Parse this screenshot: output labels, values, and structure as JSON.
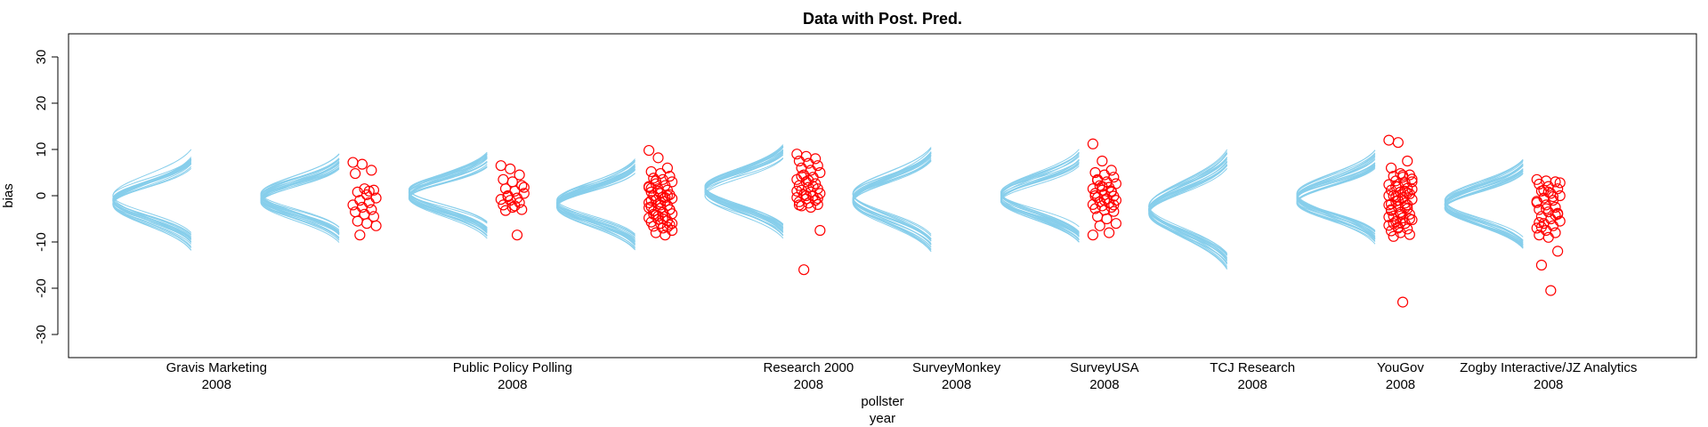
{
  "chart_data": {
    "type": "scatter",
    "title": "Data with Post. Pred.",
    "ylabel": "bias",
    "xlabel": [
      "pollster",
      "year"
    ],
    "ylim": [
      -35,
      35
    ],
    "yticks": [
      -30,
      -20,
      -10,
      0,
      10,
      20,
      30
    ],
    "grid": false,
    "colors": {
      "curves": "#87ceeb",
      "points": "#ff0000"
    },
    "x_tick_labels": [
      {
        "x": 1,
        "pollster": "Gravis Marketing",
        "year": "2008"
      },
      {
        "x": 3,
        "pollster": "Public Policy Polling",
        "year": "2008"
      },
      {
        "x": 5,
        "pollster": "Research 2000",
        "year": "2008"
      },
      {
        "x": 6,
        "pollster": "SurveyMonkey",
        "year": "2008"
      },
      {
        "x": 7,
        "pollster": "SurveyUSA",
        "year": "2008"
      },
      {
        "x": 8,
        "pollster": "TCJ Research",
        "year": "2008"
      },
      {
        "x": 9,
        "pollster": "YouGov",
        "year": "2008"
      },
      {
        "x": 10,
        "pollster": "Zogby Interactive/JZ Analytics",
        "year": "2008"
      }
    ],
    "groups": [
      {
        "x": 1,
        "mu": -1.0,
        "sigma": 4.0,
        "n": 0,
        "points": []
      },
      {
        "x": 2,
        "mu": -0.5,
        "sigma": 3.5,
        "n": 22,
        "points": [
          7.2,
          6.8,
          5.5,
          4.8,
          1.5,
          1.2,
          0.8,
          0.2,
          -0.5,
          -1.0,
          -1.5,
          -2.0,
          -2.5,
          -3.0,
          -3.5,
          -4.0,
          -4.5,
          -5.5,
          -6.0,
          -6.5,
          -8.5,
          1.0
        ]
      },
      {
        "x": 3,
        "mu": 0.5,
        "sigma": 3.5,
        "n": 22,
        "points": [
          6.5,
          5.8,
          4.5,
          3.5,
          3.0,
          2.2,
          1.5,
          1.0,
          0.5,
          0.0,
          -0.5,
          -0.8,
          -1.0,
          -1.5,
          -2.0,
          -2.5,
          -3.0,
          -3.2,
          -2.2,
          1.8,
          -0.2,
          -8.5
        ]
      },
      {
        "x": 4,
        "mu": -1.5,
        "sigma": 3.8,
        "n": 60,
        "points": [
          9.8,
          8.2,
          6.0,
          5.2,
          4.8,
          4.2,
          3.8,
          3.5,
          3.0,
          2.6,
          2.2,
          1.8,
          1.5,
          1.2,
          0.8,
          0.5,
          0.2,
          0.0,
          -0.3,
          -0.6,
          -0.9,
          -1.2,
          -1.5,
          -1.8,
          -2.1,
          -2.4,
          -2.7,
          -3.0,
          -3.3,
          -3.6,
          -3.9,
          -4.2,
          -4.5,
          -4.8,
          -5.1,
          -5.4,
          -5.7,
          -6.0,
          -6.3,
          -6.6,
          -7.0,
          -7.5,
          -8.0,
          -8.5,
          2.0,
          1.0,
          0.0,
          -1.0,
          -2.0,
          -3.0,
          -4.0,
          -5.0,
          -6.0,
          3.2,
          -0.4,
          -2.6,
          -4.4,
          -6.8,
          1.6,
          -1.4
        ]
      },
      {
        "x": 5,
        "mu": 1.0,
        "sigma": 3.8,
        "n": 40,
        "points": [
          9.0,
          8.5,
          8.0,
          7.5,
          7.0,
          6.5,
          6.0,
          5.5,
          5.0,
          4.5,
          4.0,
          3.5,
          3.0,
          2.6,
          2.2,
          1.8,
          1.5,
          1.2,
          0.8,
          0.5,
          0.2,
          -0.1,
          -0.4,
          -0.7,
          -1.0,
          -1.3,
          -1.6,
          -1.9,
          -2.2,
          -2.5,
          -7.5,
          -16.0,
          2.0,
          1.0,
          0.0,
          -1.0,
          -2.0,
          3.3,
          -0.6,
          4.2
        ]
      },
      {
        "x": 6,
        "mu": -0.5,
        "sigma": 4.5,
        "n": 0,
        "points": []
      },
      {
        "x": 7,
        "mu": -0.3,
        "sigma": 3.8,
        "n": 40,
        "points": [
          11.2,
          7.5,
          5.5,
          5.0,
          4.5,
          4.0,
          3.5,
          3.0,
          2.6,
          2.2,
          1.8,
          1.5,
          1.2,
          0.8,
          0.5,
          0.2,
          -0.1,
          -0.4,
          -0.7,
          -1.0,
          -1.3,
          -1.6,
          -1.9,
          -2.2,
          -2.5,
          -2.8,
          -3.1,
          -3.4,
          -4.5,
          -5.0,
          -6.0,
          -6.5,
          -8.0,
          -8.5,
          2.0,
          1.0,
          0.0,
          -1.0,
          -2.0,
          3.3
        ]
      },
      {
        "x": 8,
        "mu": -3.0,
        "sigma": 5.0,
        "n": 0,
        "points": []
      },
      {
        "x": 9,
        "mu": -0.5,
        "sigma": 3.8,
        "n": 60,
        "points": [
          12.0,
          11.5,
          7.5,
          6.0,
          4.8,
          4.5,
          4.2,
          4.0,
          3.6,
          3.2,
          2.8,
          2.4,
          2.0,
          1.6,
          1.2,
          0.8,
          0.4,
          0.0,
          -0.4,
          -0.8,
          -1.2,
          -1.6,
          -2.0,
          -2.4,
          -2.8,
          -3.2,
          -3.6,
          -4.0,
          -4.4,
          -4.8,
          -5.2,
          -5.6,
          -6.0,
          -6.4,
          -6.8,
          -7.2,
          -7.6,
          -8.0,
          -8.4,
          -8.8,
          -23.0,
          3.0,
          2.0,
          1.0,
          0.0,
          -1.0,
          -2.0,
          -3.0,
          -4.0,
          -5.0,
          -6.0,
          4.4,
          1.4,
          -0.2,
          -2.6,
          -4.6,
          -7.0,
          0.6,
          -1.8,
          -5.8
        ]
      },
      {
        "x": 10,
        "mu": -1.8,
        "sigma": 3.8,
        "n": 40,
        "points": [
          3.5,
          3.2,
          3.0,
          2.5,
          2.0,
          1.5,
          1.0,
          0.5,
          0.0,
          -0.5,
          -1.0,
          -1.5,
          -2.0,
          -2.5,
          -3.0,
          -3.5,
          -4.0,
          -4.5,
          -5.0,
          -5.5,
          -6.0,
          -6.5,
          -7.0,
          -7.5,
          -8.0,
          -8.5,
          -9.0,
          -12.0,
          -15.0,
          -20.5,
          2.8,
          1.2,
          -0.2,
          -1.2,
          -2.8,
          -4.2,
          -5.8,
          0.8,
          -3.8,
          -6.8
        ]
      }
    ]
  }
}
